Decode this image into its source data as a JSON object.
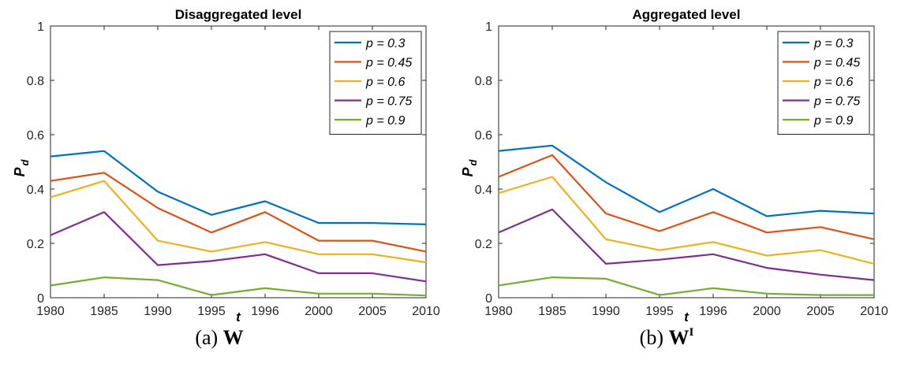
{
  "chart_data": [
    {
      "type": "line",
      "title": "Disaggregated level",
      "xlabel": "t",
      "ylabel": "P",
      "ylabel_sub": "d",
      "categories": [
        "1980",
        "1985",
        "1990",
        "1995",
        "1996",
        "2000",
        "2005",
        "2010"
      ],
      "ylim": [
        0,
        1
      ],
      "yticks": [
        "0",
        "0.2",
        "0.4",
        "0.6",
        "0.8",
        "1"
      ],
      "grid": false,
      "legend_position": "top-right",
      "series": [
        {
          "name": "p = 0.3",
          "color": "#0072BD",
          "values": [
            0.52,
            0.54,
            0.39,
            0.305,
            0.355,
            0.275,
            0.275,
            0.27
          ]
        },
        {
          "name": "p = 0.45",
          "color": "#D95319",
          "values": [
            0.43,
            0.46,
            0.33,
            0.24,
            0.315,
            0.21,
            0.21,
            0.17
          ]
        },
        {
          "name": "p = 0.6",
          "color": "#EDB120",
          "values": [
            0.37,
            0.43,
            0.21,
            0.17,
            0.205,
            0.16,
            0.16,
            0.13
          ]
        },
        {
          "name": "p = 0.75",
          "color": "#7E2F8E",
          "values": [
            0.23,
            0.315,
            0.12,
            0.135,
            0.16,
            0.09,
            0.09,
            0.06
          ]
        },
        {
          "name": "p = 0.9",
          "color": "#77AC30",
          "values": [
            0.045,
            0.075,
            0.065,
            0.01,
            0.035,
            0.015,
            0.015,
            0.008
          ]
        }
      ]
    },
    {
      "type": "line",
      "title": "Aggregated level",
      "xlabel": "t",
      "ylabel": "P",
      "ylabel_sub": "d",
      "categories": [
        "1980",
        "1985",
        "1990",
        "1995",
        "1996",
        "2000",
        "2005",
        "2010"
      ],
      "ylim": [
        0,
        1
      ],
      "yticks": [
        "0",
        "0.2",
        "0.4",
        "0.6",
        "0.8",
        "1"
      ],
      "grid": false,
      "legend_position": "top-right",
      "series": [
        {
          "name": "p = 0.3",
          "color": "#0072BD",
          "values": [
            0.54,
            0.56,
            0.425,
            0.315,
            0.4,
            0.3,
            0.32,
            0.31
          ]
        },
        {
          "name": "p = 0.45",
          "color": "#D95319",
          "values": [
            0.445,
            0.525,
            0.31,
            0.245,
            0.315,
            0.24,
            0.26,
            0.215
          ]
        },
        {
          "name": "p = 0.6",
          "color": "#EDB120",
          "values": [
            0.385,
            0.445,
            0.215,
            0.175,
            0.205,
            0.155,
            0.175,
            0.125
          ]
        },
        {
          "name": "p = 0.75",
          "color": "#7E2F8E",
          "values": [
            0.24,
            0.325,
            0.125,
            0.14,
            0.16,
            0.11,
            0.085,
            0.065
          ]
        },
        {
          "name": "p = 0.9",
          "color": "#77AC30",
          "values": [
            0.045,
            0.075,
            0.07,
            0.01,
            0.035,
            0.015,
            0.01,
            0.01
          ]
        }
      ]
    }
  ],
  "captions": [
    {
      "label": "(a)",
      "symbol": "W",
      "superscript": ""
    },
    {
      "label": "(b)",
      "symbol": "W",
      "superscript": "I"
    }
  ]
}
